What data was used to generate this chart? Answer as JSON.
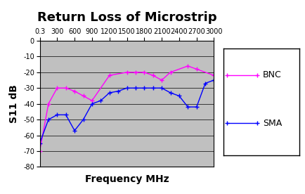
{
  "title": "Return Loss of Microstrip",
  "xlabel": "Frequency MHz",
  "ylabel": "S11 dB",
  "ylim": [
    -80,
    0
  ],
  "yticks": [
    0,
    -10,
    -20,
    -30,
    -40,
    -50,
    -60,
    -70,
    -80
  ],
  "bg_color": "#c0c0c0",
  "fig_color": "#ffffff",
  "bnc_color": "#ff00ff",
  "sma_color": "#0000ff",
  "bnc_x": [
    0.3,
    150,
    300,
    450,
    600,
    750,
    900,
    1200,
    1500,
    1650,
    1800,
    1950,
    2100,
    2250,
    2550,
    2700,
    3000
  ],
  "bnc_y": [
    -70,
    -40,
    -30,
    -30,
    -32,
    -35,
    -38,
    -22,
    -20,
    -20,
    -20,
    -22,
    -25,
    -20,
    -16,
    -18,
    -22
  ],
  "sma_x": [
    0.3,
    150,
    300,
    450,
    600,
    750,
    900,
    1050,
    1200,
    1350,
    1500,
    1650,
    1800,
    1950,
    2100,
    2250,
    2400,
    2550,
    2700,
    2850,
    3000
  ],
  "sma_y": [
    -65,
    -50,
    -47,
    -47,
    -57,
    -50,
    -40,
    -38,
    -33,
    -32,
    -30,
    -30,
    -30,
    -30,
    -30,
    -33,
    -35,
    -42,
    -42,
    -27,
    -25
  ],
  "xtick_locs": [
    0.3,
    300,
    600,
    900,
    1200,
    1500,
    1800,
    2100,
    2400,
    2700,
    3000
  ],
  "xtick_labels": [
    "0.3",
    "300",
    "600",
    "900",
    "1200",
    "1500",
    "1800",
    "2100",
    "2400",
    "2700",
    "3000"
  ],
  "title_fontsize": 13,
  "axis_label_fontsize": 10,
  "tick_fontsize": 7,
  "legend_fontsize": 9
}
